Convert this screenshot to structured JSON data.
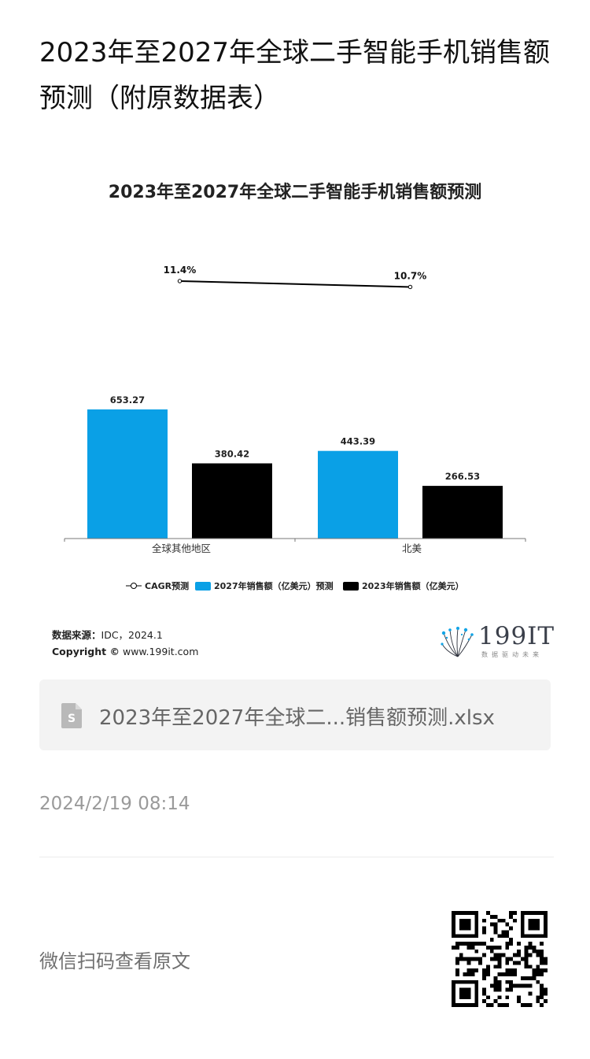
{
  "page": {
    "title": "2023年至2027年全球二手智能手机销售额预测（附原数据表）"
  },
  "chart_data": {
    "type": "bar",
    "title": "2023年至2027年全球二手智能手机销售额预测",
    "categories": [
      "全球其他地区",
      "北美"
    ],
    "series": [
      {
        "name": "2027年销售额（亿美元）预测",
        "values": [
          653.27,
          443.39
        ],
        "color": "#0aa0e6",
        "labels": [
          "653.27",
          "443.39"
        ]
      },
      {
        "name": "2023年销售额（亿美元）",
        "values": [
          380.42,
          266.53
        ],
        "color": "#000000",
        "labels": [
          "380.42",
          "266.53"
        ]
      }
    ],
    "line_series": {
      "name": "CAGR预测",
      "values": [
        11.4,
        10.7
      ],
      "labels": [
        "11.4%",
        "10.7%"
      ],
      "color": "#000000"
    },
    "legend": [
      "CAGR预测",
      "2027年销售额（亿美元）预测",
      "2023年销售额（亿美元）"
    ],
    "legend_position": "bottom",
    "ylim": [
      0,
      700
    ],
    "grid": false
  },
  "source": {
    "label": "数据来源：",
    "value": "IDC，2024.1",
    "copyright_label": "Copyright ©",
    "copyright_value": "www.199it.com"
  },
  "logo": {
    "text": "199IT",
    "subtitle": "数据驱动未来"
  },
  "attachment": {
    "filename": "2023年至2027年全球二...销售额预测.xlsx",
    "icon": "spreadsheet-file-icon"
  },
  "timestamp": "2024/2/19 08:14",
  "footer": {
    "read_original": "微信扫码查看原文",
    "qr": "qr-code-icon"
  }
}
